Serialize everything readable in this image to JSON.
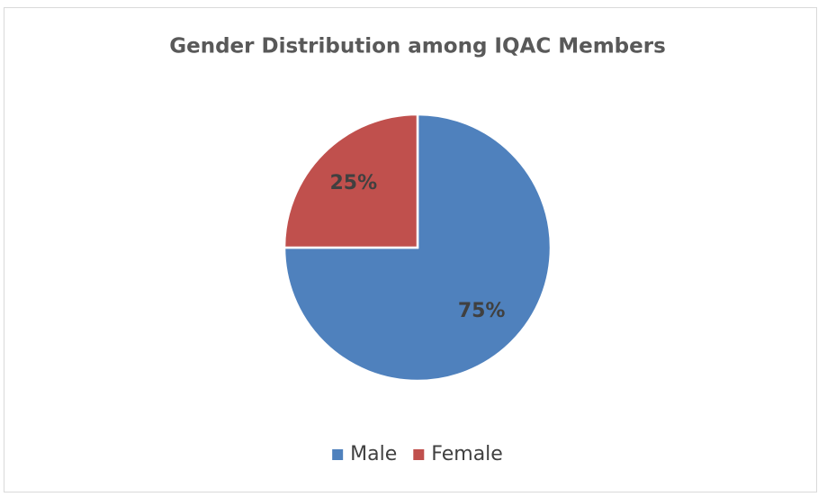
{
  "chart_data": {
    "type": "pie",
    "title": "Gender Distribution among IQAC Members",
    "categories": [
      "Male",
      "Female"
    ],
    "values": [
      75,
      25
    ],
    "value_labels": [
      "75%",
      "25%"
    ],
    "colors": [
      "#4f81bd",
      "#c0504d"
    ],
    "legend": "bottom"
  }
}
